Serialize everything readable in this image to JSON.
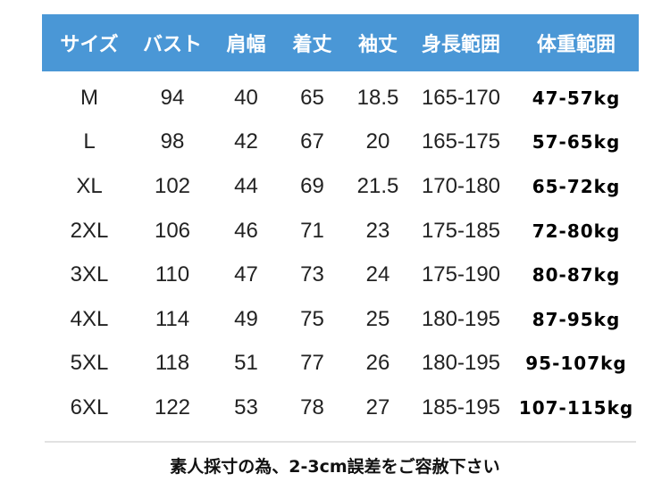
{
  "colors": {
    "header_bg": "#4a97d6",
    "header_text": "#ffffff"
  },
  "headers": [
    "サイズ",
    "バスト",
    "肩幅",
    "着丈",
    "袖丈",
    "身長範囲",
    "体重範囲"
  ],
  "rows": [
    [
      "M",
      "94",
      "40",
      "65",
      "18.5",
      "165-170",
      "47-57kg"
    ],
    [
      "L",
      "98",
      "42",
      "67",
      "20",
      "165-175",
      "57-65kg"
    ],
    [
      "XL",
      "102",
      "44",
      "69",
      "21.5",
      "170-180",
      "65-72kg"
    ],
    [
      "2XL",
      "106",
      "46",
      "71",
      "23",
      "175-185",
      "72-80kg"
    ],
    [
      "3XL",
      "110",
      "47",
      "73",
      "24",
      "175-190",
      "80-87kg"
    ],
    [
      "4XL",
      "114",
      "49",
      "75",
      "25",
      "180-195",
      "87-95kg"
    ],
    [
      "5XL",
      "118",
      "51",
      "77",
      "26",
      "180-195",
      "95-107kg"
    ],
    [
      "6XL",
      "122",
      "53",
      "78",
      "27",
      "185-195",
      "107-115kg"
    ]
  ],
  "note": "素人採寸の為、2-3cm誤差をご容赦下さい"
}
